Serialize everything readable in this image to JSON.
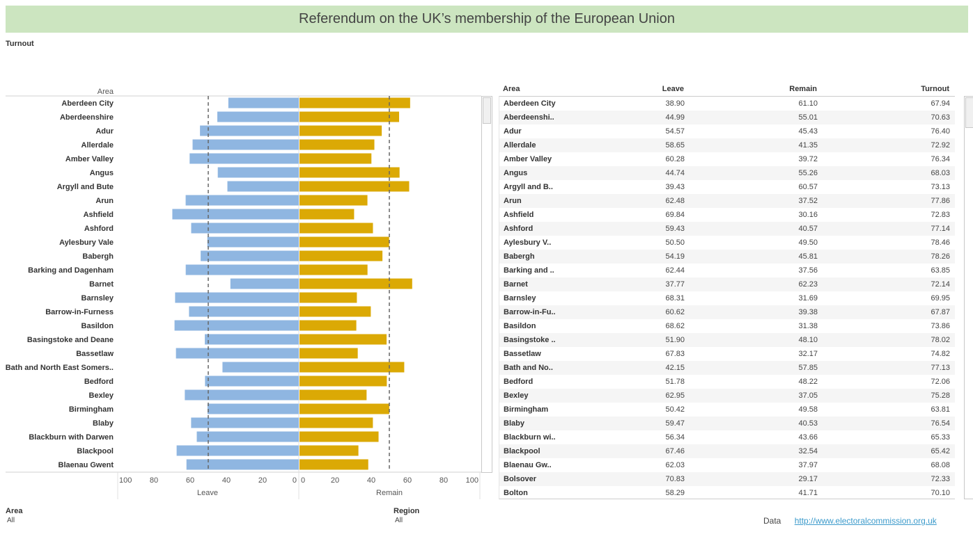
{
  "title": "Referendum on the UK’s membership of the European Union",
  "turnout_label": "Turnout",
  "filters": {
    "area": {
      "title": "Area",
      "value": "All"
    },
    "region": {
      "title": "Region",
      "value": "All"
    }
  },
  "footer": {
    "label": "Data",
    "link": "http://www.electoralcommission.org.uk"
  },
  "colors": {
    "leave": "#8fb6e1",
    "remain": "#dba905",
    "banner": "#cce5c0",
    "link": "#3b9acb"
  },
  "chart_data": {
    "type": "bar",
    "row_header": "Area",
    "leave_label": "Leave",
    "remain_label": "Remain",
    "xlim": [
      0,
      100
    ],
    "ticks_left": [
      "100",
      "80",
      "60",
      "40",
      "20",
      "0"
    ],
    "ticks_right": [
      "0",
      "20",
      "40",
      "60",
      "80",
      "100"
    ],
    "reference_line": 50,
    "categories": [
      "Aberdeen City",
      "Aberdeenshire",
      "Adur",
      "Allerdale",
      "Amber Valley",
      "Angus",
      "Argyll and Bute",
      "Arun",
      "Ashfield",
      "Ashford",
      "Aylesbury Vale",
      "Babergh",
      "Barking and Dagenham",
      "Barnet",
      "Barnsley",
      "Barrow-in-Furness",
      "Basildon",
      "Basingstoke and Deane",
      "Bassetlaw",
      "Bath and North East Somers..",
      "Bedford",
      "Bexley",
      "Birmingham",
      "Blaby",
      "Blackburn with Darwen",
      "Blackpool",
      "Blaenau Gwent"
    ],
    "series": [
      {
        "name": "Leave",
        "values": [
          38.9,
          44.99,
          54.57,
          58.65,
          60.28,
          44.74,
          39.43,
          62.48,
          69.84,
          59.43,
          50.5,
          54.19,
          62.44,
          37.77,
          68.31,
          60.62,
          68.62,
          51.9,
          67.83,
          42.15,
          51.78,
          62.95,
          50.42,
          59.47,
          56.34,
          67.46,
          62.03
        ]
      },
      {
        "name": "Remain",
        "values": [
          61.1,
          55.01,
          45.43,
          41.35,
          39.72,
          55.26,
          60.57,
          37.52,
          30.16,
          40.57,
          49.5,
          45.81,
          37.56,
          62.23,
          31.69,
          39.38,
          31.38,
          48.1,
          32.17,
          57.85,
          48.22,
          37.05,
          49.58,
          40.53,
          43.66,
          32.54,
          37.97
        ]
      }
    ]
  },
  "table": {
    "columns": [
      "Area",
      "Leave",
      "Remain",
      "Turnout"
    ],
    "rows": [
      [
        "Aberdeen City",
        "38.90",
        "61.10",
        "67.94"
      ],
      [
        "Aberdeenshi..",
        "44.99",
        "55.01",
        "70.63"
      ],
      [
        "Adur",
        "54.57",
        "45.43",
        "76.40"
      ],
      [
        "Allerdale",
        "58.65",
        "41.35",
        "72.92"
      ],
      [
        "Amber Valley",
        "60.28",
        "39.72",
        "76.34"
      ],
      [
        "Angus",
        "44.74",
        "55.26",
        "68.03"
      ],
      [
        "Argyll and B..",
        "39.43",
        "60.57",
        "73.13"
      ],
      [
        "Arun",
        "62.48",
        "37.52",
        "77.86"
      ],
      [
        "Ashfield",
        "69.84",
        "30.16",
        "72.83"
      ],
      [
        "Ashford",
        "59.43",
        "40.57",
        "77.14"
      ],
      [
        "Aylesbury V..",
        "50.50",
        "49.50",
        "78.46"
      ],
      [
        "Babergh",
        "54.19",
        "45.81",
        "78.26"
      ],
      [
        "Barking and ..",
        "62.44",
        "37.56",
        "63.85"
      ],
      [
        "Barnet",
        "37.77",
        "62.23",
        "72.14"
      ],
      [
        "Barnsley",
        "68.31",
        "31.69",
        "69.95"
      ],
      [
        "Barrow-in-Fu..",
        "60.62",
        "39.38",
        "67.87"
      ],
      [
        "Basildon",
        "68.62",
        "31.38",
        "73.86"
      ],
      [
        "Basingstoke ..",
        "51.90",
        "48.10",
        "78.02"
      ],
      [
        "Bassetlaw",
        "67.83",
        "32.17",
        "74.82"
      ],
      [
        "Bath and No..",
        "42.15",
        "57.85",
        "77.13"
      ],
      [
        "Bedford",
        "51.78",
        "48.22",
        "72.06"
      ],
      [
        "Bexley",
        "62.95",
        "37.05",
        "75.28"
      ],
      [
        "Birmingham",
        "50.42",
        "49.58",
        "63.81"
      ],
      [
        "Blaby",
        "59.47",
        "40.53",
        "76.54"
      ],
      [
        "Blackburn wi..",
        "56.34",
        "43.66",
        "65.33"
      ],
      [
        "Blackpool",
        "67.46",
        "32.54",
        "65.42"
      ],
      [
        "Blaenau Gw..",
        "62.03",
        "37.97",
        "68.08"
      ],
      [
        "Bolsover",
        "70.83",
        "29.17",
        "72.33"
      ],
      [
        "Bolton",
        "58.29",
        "41.71",
        "70.10"
      ]
    ]
  }
}
